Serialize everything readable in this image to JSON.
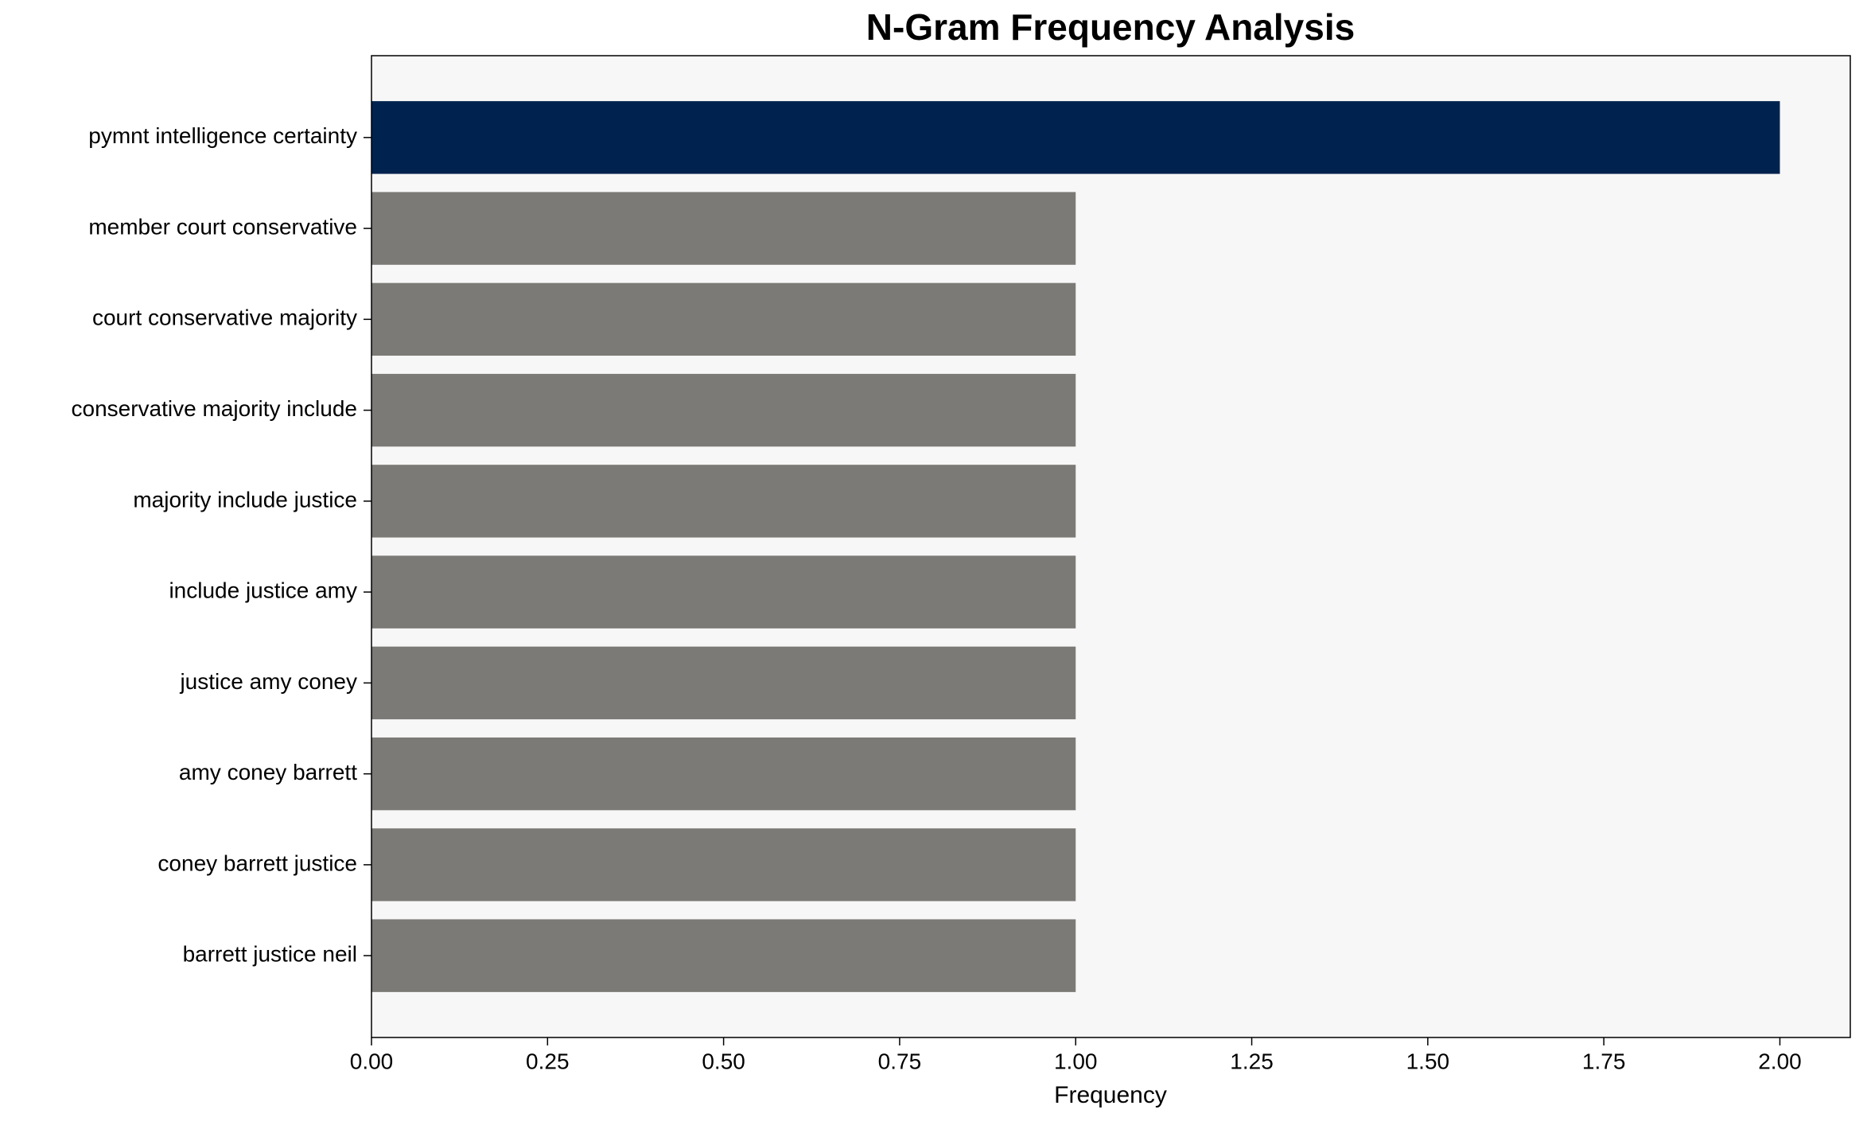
{
  "chart_data": {
    "type": "barh",
    "title": "N-Gram Frequency Analysis",
    "xlabel": "Frequency",
    "categories": [
      "pymnt intelligence certainty",
      "member court conservative",
      "court conservative majority",
      "conservative majority include",
      "majority include justice",
      "include justice amy",
      "justice amy coney",
      "amy coney barrett",
      "coney barrett justice",
      "barrett justice neil"
    ],
    "values": [
      2,
      1,
      1,
      1,
      1,
      1,
      1,
      1,
      1,
      1
    ],
    "colors": [
      "#00224e",
      "#7b7a76",
      "#7b7a76",
      "#7b7a76",
      "#7b7a76",
      "#7b7a76",
      "#7b7a76",
      "#7b7a76",
      "#7b7a76",
      "#7b7a76"
    ],
    "xlim": [
      0,
      2.1
    ],
    "xticks": [
      {
        "value": 0,
        "label": "0.00"
      },
      {
        "value": 0.25,
        "label": "0.25"
      },
      {
        "value": 0.5,
        "label": "0.50"
      },
      {
        "value": 0.75,
        "label": "0.75"
      },
      {
        "value": 1,
        "label": "1.00"
      },
      {
        "value": 1.25,
        "label": "1.25"
      },
      {
        "value": 1.5,
        "label": "1.50"
      },
      {
        "value": 1.75,
        "label": "1.75"
      },
      {
        "value": 2,
        "label": "2.00"
      }
    ],
    "grid": false,
    "background": "#f7f7f7"
  }
}
